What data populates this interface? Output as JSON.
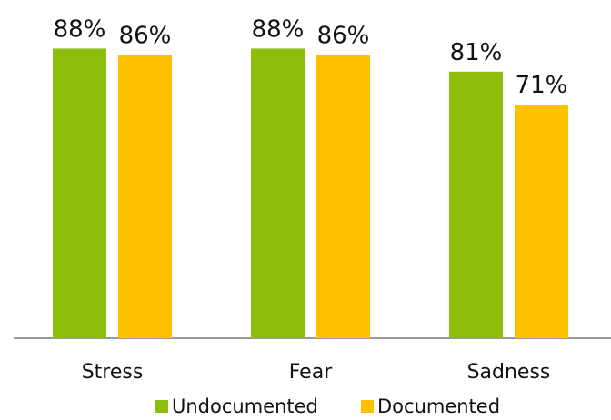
{
  "chart_data": {
    "type": "bar",
    "categories": [
      "Stress",
      "Fear",
      "Sadness"
    ],
    "series": [
      {
        "name": "Undocumented",
        "values": [
          88,
          88,
          81
        ],
        "color": "#8DBE0B"
      },
      {
        "name": "Documented",
        "values": [
          86,
          86,
          71
        ],
        "color": "#FFC000"
      }
    ],
    "value_suffix": "%",
    "ylim": [
      0,
      100
    ],
    "legend_position": "bottom",
    "grid": false,
    "axis_color": "#999999"
  }
}
